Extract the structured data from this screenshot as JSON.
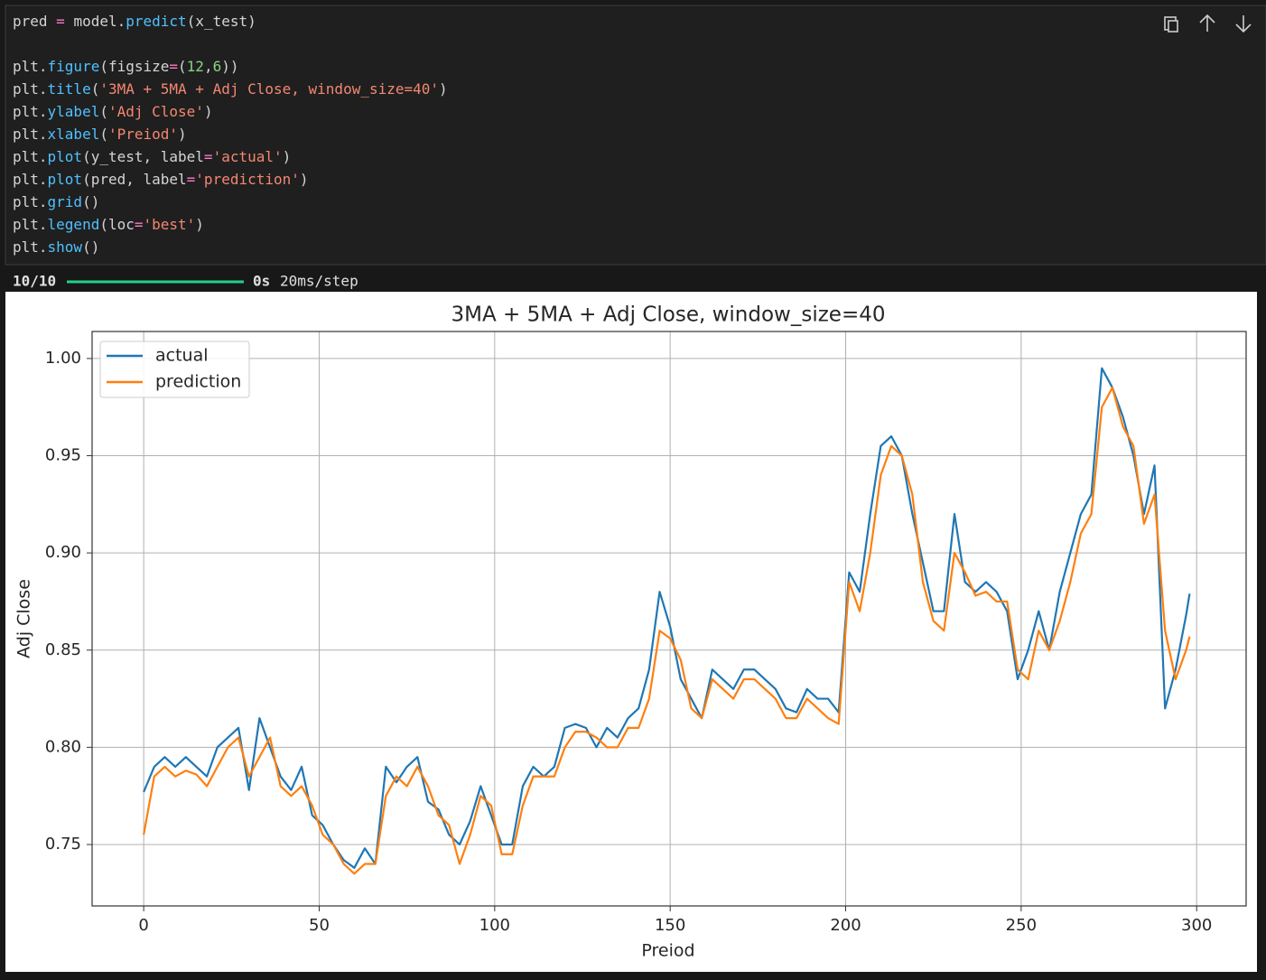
{
  "code": {
    "lines": [
      [
        "pred ",
        "=",
        " model.",
        "predict",
        "(x_test)"
      ],
      [],
      [
        "plt.",
        "figure",
        "(figsize",
        "=",
        "(",
        "12",
        ",",
        "6",
        "))"
      ],
      [
        "plt.",
        "title",
        "(",
        "'3MA + 5MA + Adj Close, window_size=40'",
        ")"
      ],
      [
        "plt.",
        "ylabel",
        "(",
        "'Adj Close'",
        ")"
      ],
      [
        "plt.",
        "xlabel",
        "(",
        "'Preiod'",
        ")"
      ],
      [
        "plt.",
        "plot",
        "(y_test, label",
        "=",
        "'actual'",
        ")"
      ],
      [
        "plt.",
        "plot",
        "(pred, label",
        "=",
        "'prediction'",
        ")"
      ],
      [
        "plt.",
        "grid",
        "()"
      ],
      [
        "plt.",
        "legend",
        "(loc",
        "=",
        "'best'",
        ")"
      ],
      [
        "plt.",
        "show",
        "()"
      ]
    ]
  },
  "output": {
    "progress": "10/10",
    "time": "0s",
    "rate": "20ms/step"
  },
  "chart_data": {
    "type": "line",
    "title": "3MA + 5MA + Adj Close, window_size=40",
    "x_label": "Preiod",
    "y_label": "Adj Close",
    "x": [
      0,
      3,
      6,
      9,
      12,
      15,
      18,
      21,
      24,
      27,
      30,
      33,
      36,
      39,
      42,
      45,
      48,
      51,
      54,
      57,
      60,
      63,
      66,
      69,
      72,
      75,
      78,
      81,
      84,
      87,
      90,
      93,
      96,
      99,
      102,
      105,
      108,
      111,
      114,
      117,
      120,
      123,
      126,
      129,
      132,
      135,
      138,
      141,
      144,
      147,
      150,
      153,
      156,
      159,
      162,
      165,
      168,
      171,
      174,
      177,
      180,
      183,
      186,
      189,
      192,
      195,
      198,
      201,
      204,
      207,
      210,
      213,
      216,
      219,
      222,
      225,
      228,
      231,
      234,
      237,
      240,
      243,
      246,
      249,
      252,
      255,
      258,
      261,
      264,
      267,
      270,
      273,
      276,
      279,
      282,
      285,
      288,
      291,
      294,
      297,
      298
    ],
    "series": [
      {
        "name": "actual",
        "color": "#1f77b4",
        "values": [
          0.777,
          0.79,
          0.795,
          0.79,
          0.795,
          0.79,
          0.785,
          0.8,
          0.805,
          0.81,
          0.778,
          0.815,
          0.8,
          0.785,
          0.778,
          0.79,
          0.765,
          0.76,
          0.75,
          0.742,
          0.738,
          0.748,
          0.74,
          0.79,
          0.782,
          0.79,
          0.795,
          0.772,
          0.768,
          0.755,
          0.75,
          0.762,
          0.78,
          0.765,
          0.75,
          0.75,
          0.78,
          0.79,
          0.785,
          0.79,
          0.81,
          0.812,
          0.81,
          0.8,
          0.81,
          0.805,
          0.815,
          0.82,
          0.84,
          0.88,
          0.862,
          0.835,
          0.825,
          0.815,
          0.84,
          0.835,
          0.83,
          0.84,
          0.84,
          0.835,
          0.83,
          0.82,
          0.818,
          0.83,
          0.825,
          0.825,
          0.818,
          0.89,
          0.88,
          0.92,
          0.955,
          0.96,
          0.95,
          0.92,
          0.895,
          0.87,
          0.87,
          0.92,
          0.885,
          0.88,
          0.885,
          0.88,
          0.87,
          0.835,
          0.85,
          0.87,
          0.85,
          0.88,
          0.9,
          0.92,
          0.93,
          0.995,
          0.985,
          0.97,
          0.95,
          0.92,
          0.945,
          0.82,
          0.84,
          0.868,
          0.879
        ]
      },
      {
        "name": "prediction",
        "color": "#ff7f0e",
        "values": [
          0.755,
          0.785,
          0.79,
          0.785,
          0.788,
          0.786,
          0.78,
          0.79,
          0.8,
          0.805,
          0.785,
          0.795,
          0.805,
          0.78,
          0.775,
          0.78,
          0.77,
          0.755,
          0.75,
          0.74,
          0.735,
          0.74,
          0.74,
          0.775,
          0.785,
          0.78,
          0.79,
          0.78,
          0.765,
          0.76,
          0.74,
          0.755,
          0.775,
          0.77,
          0.745,
          0.745,
          0.77,
          0.785,
          0.785,
          0.785,
          0.8,
          0.808,
          0.808,
          0.805,
          0.8,
          0.8,
          0.81,
          0.81,
          0.825,
          0.86,
          0.856,
          0.845,
          0.82,
          0.815,
          0.835,
          0.83,
          0.825,
          0.835,
          0.835,
          0.83,
          0.825,
          0.815,
          0.815,
          0.825,
          0.82,
          0.815,
          0.812,
          0.885,
          0.87,
          0.9,
          0.94,
          0.955,
          0.95,
          0.93,
          0.885,
          0.865,
          0.86,
          0.9,
          0.89,
          0.878,
          0.88,
          0.875,
          0.875,
          0.84,
          0.835,
          0.86,
          0.85,
          0.865,
          0.885,
          0.91,
          0.92,
          0.975,
          0.985,
          0.965,
          0.955,
          0.915,
          0.93,
          0.86,
          0.835,
          0.85,
          0.857
        ]
      }
    ],
    "xlim": [
      -14.7,
      314.1
    ],
    "ylim": [
      0.7184,
      1.0139
    ],
    "xticks": [
      0,
      50,
      100,
      150,
      200,
      250,
      300
    ],
    "yticks": [
      0.75,
      {
        "value": 0.8,
        "label": "0.80"
      },
      0.85,
      {
        "value": 0.9,
        "label": "0.90"
      },
      0.95,
      {
        "value": 1,
        "label": "1.00"
      }
    ],
    "grid": true,
    "legend": "upper left"
  }
}
